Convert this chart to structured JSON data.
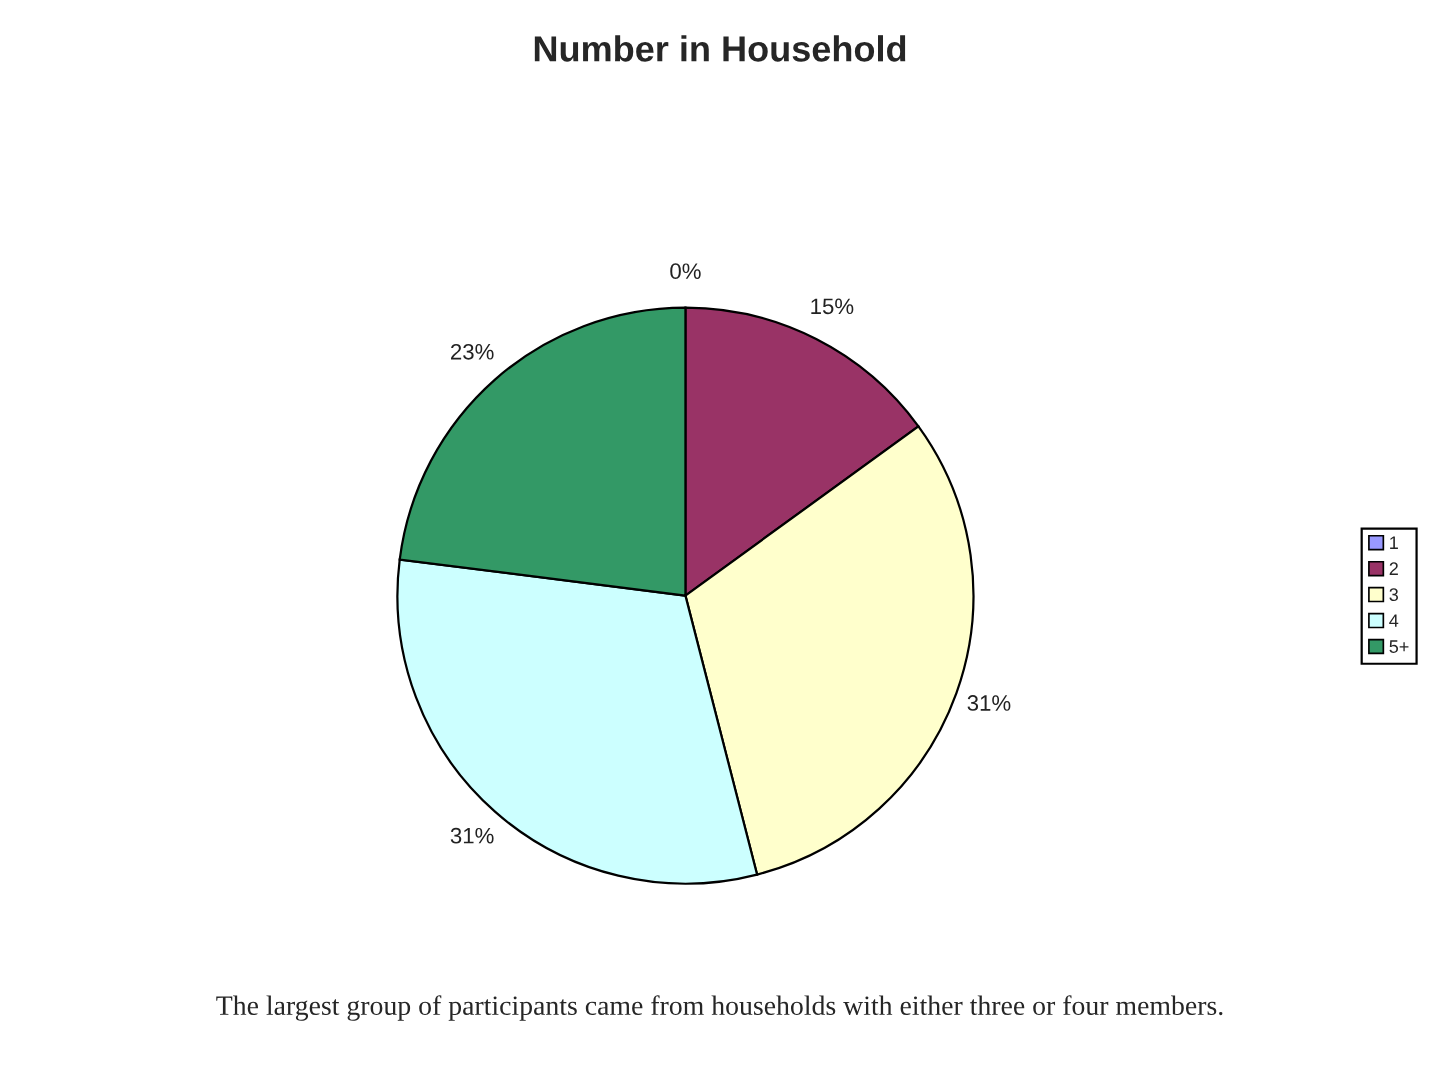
{
  "chart_data": {
    "type": "pie",
    "title": "Number in Household",
    "categories": [
      "1",
      "2",
      "3",
      "4",
      "5+"
    ],
    "values": [
      0,
      15,
      31,
      31,
      23
    ],
    "value_labels": [
      "0%",
      "15%",
      "31%",
      "31%",
      "23%"
    ],
    "colors": [
      "#9999ff",
      "#993366",
      "#ffffcc",
      "#ccffff",
      "#339966"
    ],
    "legend": "right",
    "annotations": [
      "The largest group of participants came from households with either three or four members."
    ]
  }
}
